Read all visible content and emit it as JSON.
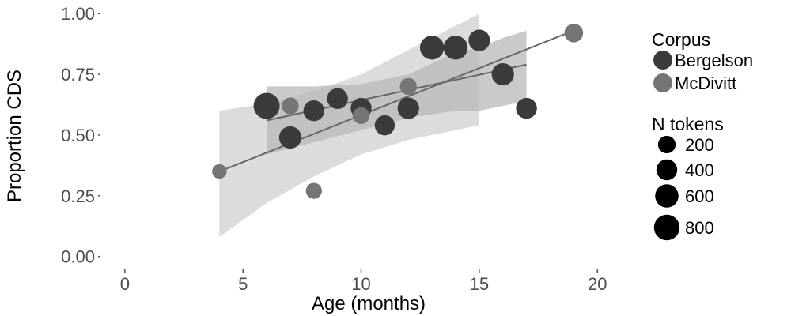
{
  "colors": {
    "bergelson": "#3b3b3b",
    "mcdivitt": "#757575",
    "band_bergelson": "#b8b8b8",
    "band_mcdivitt": "#d6d6d6",
    "line": "#666666",
    "size_legend": "#000000"
  },
  "chart_data": {
    "type": "scatter",
    "xlabel": "Age (months)",
    "ylabel": "Proportion CDS",
    "xlim": [
      -1,
      21.5
    ],
    "ylim": [
      -0.05,
      1.03
    ],
    "x_ticks": [
      "0",
      "5",
      "10",
      "15",
      "20"
    ],
    "y_ticks": [
      "0.00",
      "0.25",
      "0.50",
      "0.75",
      "1.00"
    ],
    "grid": false,
    "legend_position": "right",
    "legends": {
      "color": {
        "title": "Corpus",
        "entries": [
          "Bergelson",
          "McDivitt"
        ]
      },
      "size": {
        "title": "N tokens",
        "entries": [
          "200",
          "400",
          "600",
          "800"
        ],
        "values": [
          200,
          400,
          600,
          800
        ]
      }
    },
    "series": [
      {
        "name": "Bergelson",
        "points": [
          {
            "x": 6,
            "y": 0.62,
            "n": 850
          },
          {
            "x": 7,
            "y": 0.49,
            "n": 500
          },
          {
            "x": 8,
            "y": 0.6,
            "n": 400
          },
          {
            "x": 9,
            "y": 0.65,
            "n": 400
          },
          {
            "x": 10,
            "y": 0.61,
            "n": 400
          },
          {
            "x": 11,
            "y": 0.54,
            "n": 350
          },
          {
            "x": 12,
            "y": 0.61,
            "n": 450
          },
          {
            "x": 13,
            "y": 0.86,
            "n": 650
          },
          {
            "x": 14,
            "y": 0.86,
            "n": 650
          },
          {
            "x": 15,
            "y": 0.89,
            "n": 450
          },
          {
            "x": 16,
            "y": 0.75,
            "n": 500
          },
          {
            "x": 17,
            "y": 0.61,
            "n": 400
          }
        ],
        "fit": {
          "x": [
            6,
            17
          ],
          "y": [
            0.56,
            0.79
          ]
        },
        "band": {
          "x": [
            6,
            8,
            10,
            12,
            14,
            15,
            16,
            17
          ],
          "lower": [
            0.42,
            0.47,
            0.52,
            0.57,
            0.6,
            0.6,
            0.62,
            0.64
          ],
          "upper": [
            0.7,
            0.7,
            0.71,
            0.75,
            0.84,
            0.86,
            0.9,
            0.93
          ]
        }
      },
      {
        "name": "McDivitt",
        "points": [
          {
            "x": 4,
            "y": 0.35,
            "n": 80
          },
          {
            "x": 7,
            "y": 0.62,
            "n": 170
          },
          {
            "x": 8,
            "y": 0.27,
            "n": 130
          },
          {
            "x": 10,
            "y": 0.58,
            "n": 170
          },
          {
            "x": 12,
            "y": 0.7,
            "n": 170
          },
          {
            "x": 19,
            "y": 0.92,
            "n": 260
          }
        ],
        "fit": {
          "x": [
            4,
            19
          ],
          "y": [
            0.35,
            0.93
          ]
        },
        "band": {
          "x": [
            4,
            6,
            8,
            10,
            12,
            13,
            14,
            15
          ],
          "lower": [
            0.08,
            0.22,
            0.33,
            0.42,
            0.48,
            0.5,
            0.52,
            0.54
          ],
          "upper": [
            0.6,
            0.63,
            0.68,
            0.75,
            0.85,
            0.9,
            0.95,
            1.0
          ]
        }
      }
    ]
  }
}
